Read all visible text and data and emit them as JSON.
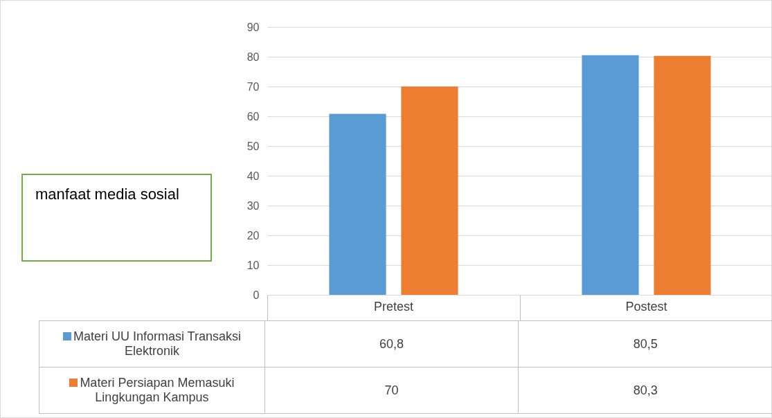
{
  "chart_data": {
    "type": "bar",
    "categories": [
      "Pretest",
      "Postest"
    ],
    "series": [
      {
        "name": "Materi UU Informasi Transaksi Elektronik",
        "color": "#5b9bd5",
        "values": [
          60.8,
          80.5
        ],
        "value_labels": [
          "60,8",
          "80,5"
        ]
      },
      {
        "name": "Materi Persiapan Memasuki Lingkungan Kampus",
        "color": "#ed7d31",
        "values": [
          70,
          80.3
        ],
        "value_labels": [
          "70",
          "80,3"
        ]
      }
    ],
    "ylim": [
      0,
      90
    ],
    "yticks": [
      0,
      10,
      20,
      30,
      40,
      50,
      60,
      70,
      80,
      90
    ],
    "grid": "y",
    "legend": "bottom",
    "annotations": [
      "manfaat media sosial"
    ]
  }
}
